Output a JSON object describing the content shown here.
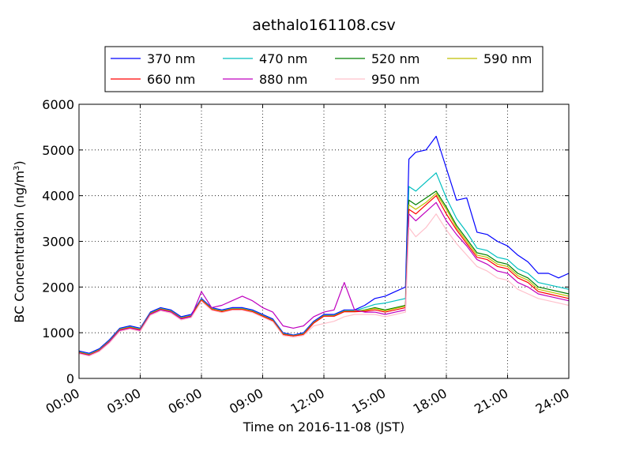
{
  "chart_data": {
    "type": "line",
    "title": "aethalo161108.csv",
    "xlabel": "Time on 2016-11-08 (JST)",
    "ylabel": "BC Concentration (ng/m",
    "ylabel_sup": "3",
    "ylabel_end": ")",
    "xlim": [
      "00:00",
      "24:00"
    ],
    "ylim": [
      0,
      6000
    ],
    "x_ticks": [
      "00:00",
      "03:00",
      "06:00",
      "09:00",
      "12:00",
      "15:00",
      "18:00",
      "21:00",
      "24:00"
    ],
    "y_ticks": [
      0,
      1000,
      2000,
      3000,
      4000,
      5000,
      6000
    ],
    "grid": true,
    "legend_position": "top-center, above plot",
    "x": [
      "00:00",
      "00:30",
      "01:00",
      "01:30",
      "02:00",
      "02:30",
      "03:00",
      "03:30",
      "04:00",
      "04:30",
      "05:00",
      "05:30",
      "06:00",
      "06:30",
      "07:00",
      "07:30",
      "08:00",
      "08:30",
      "09:00",
      "09:30",
      "10:00",
      "10:30",
      "11:00",
      "11:30",
      "12:00",
      "12:30",
      "13:00",
      "13:30",
      "14:00",
      "14:30",
      "15:00",
      "15:30",
      "16:00",
      "16:10",
      "16:30",
      "17:00",
      "17:30",
      "18:00",
      "18:30",
      "19:00",
      "19:30",
      "20:00",
      "20:30",
      "21:00",
      "21:30",
      "22:00",
      "22:30",
      "23:00",
      "23:30",
      "24:00"
    ],
    "series": [
      {
        "name": "370 nm",
        "color": "#0000ff",
        "values": [
          600,
          550,
          650,
          850,
          1100,
          1150,
          1100,
          1450,
          1550,
          1500,
          1350,
          1400,
          1750,
          1550,
          1500,
          1550,
          1550,
          1500,
          1400,
          1300,
          1000,
          950,
          1000,
          1250,
          1400,
          1400,
          1500,
          1500,
          1600,
          1750,
          1800,
          1900,
          2000,
          4800,
          4950,
          5000,
          5300,
          4600,
          3900,
          3950,
          3200,
          3150,
          3000,
          2900,
          2700,
          2550,
          2300,
          2300,
          2200,
          2300
        ]
      },
      {
        "name": "470 nm",
        "color": "#00bfbf",
        "values": [
          580,
          530,
          630,
          830,
          1080,
          1130,
          1080,
          1430,
          1530,
          1480,
          1330,
          1380,
          1730,
          1530,
          1480,
          1530,
          1530,
          1480,
          1380,
          1280,
          980,
          940,
          980,
          1230,
          1380,
          1380,
          1480,
          1480,
          1550,
          1620,
          1650,
          1700,
          1750,
          4200,
          4100,
          4300,
          4500,
          3950,
          3500,
          3200,
          2850,
          2800,
          2650,
          2600,
          2400,
          2300,
          2100,
          2050,
          2000,
          1950
        ]
      },
      {
        "name": "520 nm",
        "color": "#008000",
        "values": [
          570,
          520,
          620,
          820,
          1070,
          1120,
          1070,
          1420,
          1520,
          1470,
          1320,
          1370,
          1720,
          1520,
          1470,
          1520,
          1520,
          1470,
          1370,
          1270,
          970,
          930,
          970,
          1220,
          1370,
          1370,
          1470,
          1470,
          1500,
          1550,
          1500,
          1550,
          1600,
          3900,
          3800,
          3950,
          4100,
          3750,
          3350,
          3050,
          2750,
          2700,
          2550,
          2500,
          2300,
          2200,
          2000,
          1950,
          1900,
          1850
        ]
      },
      {
        "name": "590 nm",
        "color": "#bfbf00",
        "values": [
          570,
          520,
          620,
          820,
          1070,
          1120,
          1070,
          1420,
          1520,
          1470,
          1320,
          1370,
          1720,
          1520,
          1470,
          1520,
          1520,
          1470,
          1370,
          1270,
          970,
          930,
          970,
          1220,
          1370,
          1370,
          1470,
          1470,
          1490,
          1530,
          1480,
          1530,
          1580,
          3800,
          3700,
          3850,
          4050,
          3700,
          3300,
          3000,
          2700,
          2650,
          2500,
          2450,
          2250,
          2150,
          1950,
          1900,
          1850,
          1800
        ]
      },
      {
        "name": "660 nm",
        "color": "#ff0000",
        "values": [
          560,
          510,
          610,
          810,
          1060,
          1110,
          1060,
          1410,
          1510,
          1460,
          1310,
          1360,
          1710,
          1510,
          1460,
          1510,
          1510,
          1460,
          1360,
          1260,
          960,
          930,
          960,
          1210,
          1360,
          1360,
          1460,
          1460,
          1470,
          1500,
          1450,
          1500,
          1550,
          3700,
          3600,
          3800,
          4000,
          3600,
          3250,
          2950,
          2650,
          2600,
          2450,
          2400,
          2200,
          2100,
          1900,
          1850,
          1800,
          1750
        ]
      },
      {
        "name": "880 nm",
        "color": "#bf00bf",
        "values": [
          550,
          500,
          600,
          800,
          1050,
          1100,
          1050,
          1400,
          1500,
          1450,
          1300,
          1350,
          1900,
          1550,
          1600,
          1700,
          1800,
          1700,
          1550,
          1450,
          1150,
          1100,
          1150,
          1350,
          1450,
          1500,
          2100,
          1500,
          1450,
          1450,
          1400,
          1450,
          1500,
          3600,
          3450,
          3650,
          3850,
          3450,
          3150,
          2900,
          2600,
          2500,
          2350,
          2300,
          2100,
          2000,
          1850,
          1800,
          1750,
          1700
        ]
      },
      {
        "name": "950 nm",
        "color": "#ffc0cb",
        "values": [
          540,
          490,
          590,
          780,
          1030,
          1080,
          1030,
          1380,
          1480,
          1430,
          1280,
          1330,
          1690,
          1490,
          1440,
          1490,
          1490,
          1440,
          1340,
          1240,
          940,
          900,
          940,
          1150,
          1200,
          1250,
          1350,
          1400,
          1400,
          1400,
          1350,
          1400,
          1450,
          3300,
          3100,
          3300,
          3600,
          3250,
          2950,
          2700,
          2450,
          2350,
          2200,
          2150,
          1950,
          1850,
          1750,
          1700,
          1650,
          1600
        ]
      }
    ]
  }
}
